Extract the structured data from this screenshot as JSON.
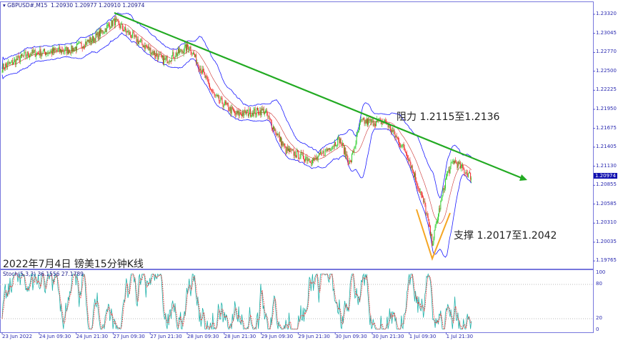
{
  "header": {
    "symbol": "GBPUSD#,M15",
    "ohlc": "1.20930 1.20977 1.20910 1.20974"
  },
  "caption": "2022年7月4日 镑美15分钟K线",
  "annotations": {
    "resistance": "阻力 1.2115至1.2136",
    "support": "支撑 1.2017至1.2042"
  },
  "stoch_label": "Stoch(5,3,3) 36.1556 27.1789",
  "current_price": "1.20974",
  "colors": {
    "bands": "#1a1aff",
    "trendline": "#22aa22",
    "support_v": "#f5a623",
    "bull": "#22cc22",
    "bear": "#ee2222",
    "stoch_main": "#20b2aa",
    "stoch_signal": "#ee3333"
  },
  "chart_data": {
    "type": "candlestick",
    "indicators": [
      "Bollinger Bands",
      "Stochastic(5,3,3)"
    ],
    "y_ticks": [
      "1.23320",
      "1.23045",
      "1.22770",
      "1.22500",
      "1.22225",
      "1.21950",
      "1.21675",
      "1.21405",
      "1.21130",
      "1.20855",
      "1.20585",
      "1.20310",
      "1.20035",
      "1.19765"
    ],
    "ylim": [
      1.197,
      1.2345
    ],
    "x_ticks": [
      "23 Jun 2022",
      "24 Jun 09:30",
      "24 Jun 21:30",
      "27 Jun 09:30",
      "27 Jun 21:30",
      "28 Jun 09:30",
      "28 Jun 21:30",
      "29 Jun 09:30",
      "29 Jun 21:30",
      "30 Jun 09:30",
      "30 Jun 21:30",
      "1 Jul 09:30",
      "1 Jul 21:30"
    ],
    "stoch_levels": [
      "100",
      "80",
      "20",
      "0"
    ],
    "approx_close": [
      {
        "t": "23 Jun 21:00",
        "p": 1.2255
      },
      {
        "t": "24 Jun 05:30",
        "p": 1.2275
      },
      {
        "t": "24 Jun 19:30",
        "p": 1.2281
      },
      {
        "t": "27 Jun 02:45",
        "p": 1.2296
      },
      {
        "t": "27 Jun 09:45",
        "p": 1.2322
      },
      {
        "t": "27 Jun 16:45",
        "p": 1.2296
      },
      {
        "t": "28 Jun 02:00",
        "p": 1.2265
      },
      {
        "t": "28 Jun 10:00",
        "p": 1.2286
      },
      {
        "t": "28 Jun 18:00",
        "p": 1.2214
      },
      {
        "t": "29 Jun 01:00",
        "p": 1.2188
      },
      {
        "t": "29 Jun 10:15",
        "p": 1.2193
      },
      {
        "t": "29 Jun 17:15",
        "p": 1.2136
      },
      {
        "t": "30 Jun 02:30",
        "p": 1.2121
      },
      {
        "t": "30 Jun 10:45",
        "p": 1.2152
      },
      {
        "t": "30 Jun 14:00",
        "p": 1.2116
      },
      {
        "t": "30 Jun 17:30",
        "p": 1.2177
      },
      {
        "t": "1 Jul 01:30",
        "p": 1.2177
      },
      {
        "t": "1 Jul 08:30",
        "p": 1.2131
      },
      {
        "t": "1 Jul 14:15",
        "p": 1.2054
      },
      {
        "t": "1 Jul 16:30",
        "p": 1.2002
      },
      {
        "t": "1 Jul 21:15",
        "p": 1.21
      },
      {
        "t": "1 Jul 23:45",
        "p": 1.2121
      },
      {
        "t": "4 Jul 05:00",
        "p": 1.20974
      }
    ]
  }
}
